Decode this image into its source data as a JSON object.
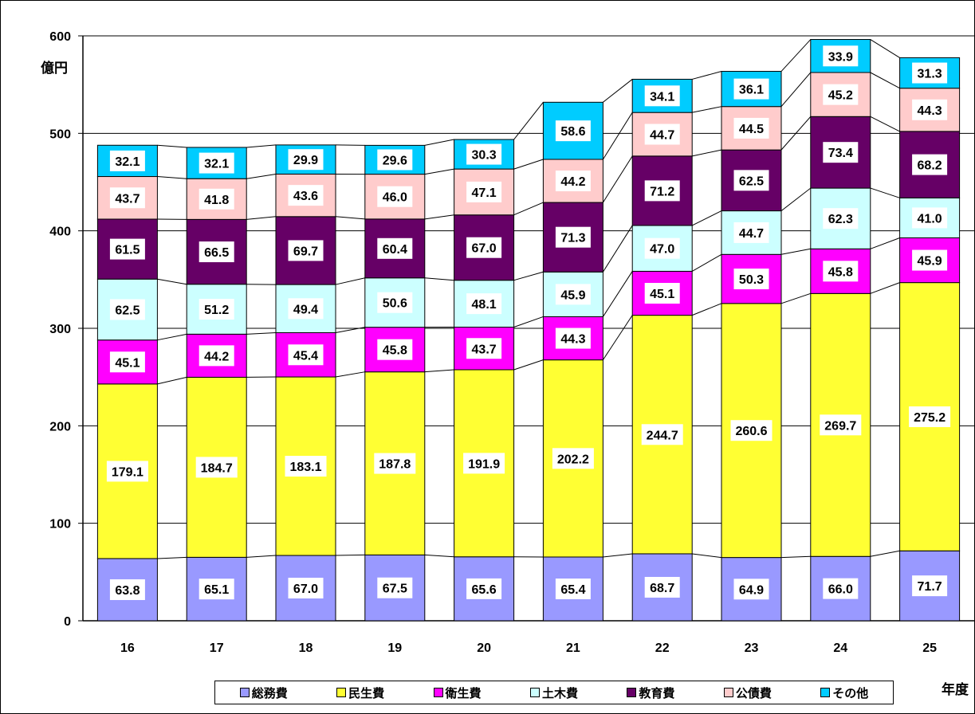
{
  "chart_data": {
    "type": "bar",
    "stacked": true,
    "ylabel": "億円",
    "xlabel": "年度",
    "ylim": [
      0,
      600
    ],
    "yticks": [
      0,
      100,
      200,
      300,
      400,
      500,
      600
    ],
    "categories": [
      "16",
      "17",
      "18",
      "19",
      "20",
      "21",
      "22",
      "23",
      "24",
      "25"
    ],
    "series": [
      {
        "name": "総務費",
        "color": "#9999ff",
        "values": [
          63.8,
          65.1,
          67.0,
          67.5,
          65.6,
          65.4,
          68.7,
          64.9,
          66.0,
          71.7
        ]
      },
      {
        "name": "民生費",
        "color": "#ffff33",
        "values": [
          179.1,
          184.7,
          183.1,
          187.8,
          191.9,
          202.2,
          244.7,
          260.6,
          269.7,
          275.2
        ]
      },
      {
        "name": "衛生費",
        "color": "#ff00ff",
        "values": [
          45.1,
          44.2,
          45.4,
          45.8,
          43.7,
          44.3,
          45.1,
          50.3,
          45.8,
          45.9
        ]
      },
      {
        "name": "土木費",
        "color": "#ccffff",
        "values": [
          62.5,
          51.2,
          49.4,
          50.6,
          48.1,
          45.9,
          47.0,
          44.7,
          62.3,
          41.0
        ]
      },
      {
        "name": "教育費",
        "color": "#660066",
        "values": [
          61.5,
          66.5,
          69.7,
          60.4,
          67.0,
          71.3,
          71.2,
          62.5,
          73.4,
          68.2
        ]
      },
      {
        "name": "公債費",
        "color": "#ffcccc",
        "values": [
          43.7,
          41.8,
          43.6,
          46.0,
          47.1,
          44.2,
          44.7,
          44.5,
          45.2,
          44.3
        ]
      },
      {
        "name": "その他",
        "color": "#00ccff",
        "values": [
          32.1,
          32.1,
          29.9,
          29.6,
          30.3,
          58.6,
          34.1,
          36.1,
          33.9,
          31.3
        ]
      }
    ],
    "legend_position": "bottom",
    "grid": true
  }
}
